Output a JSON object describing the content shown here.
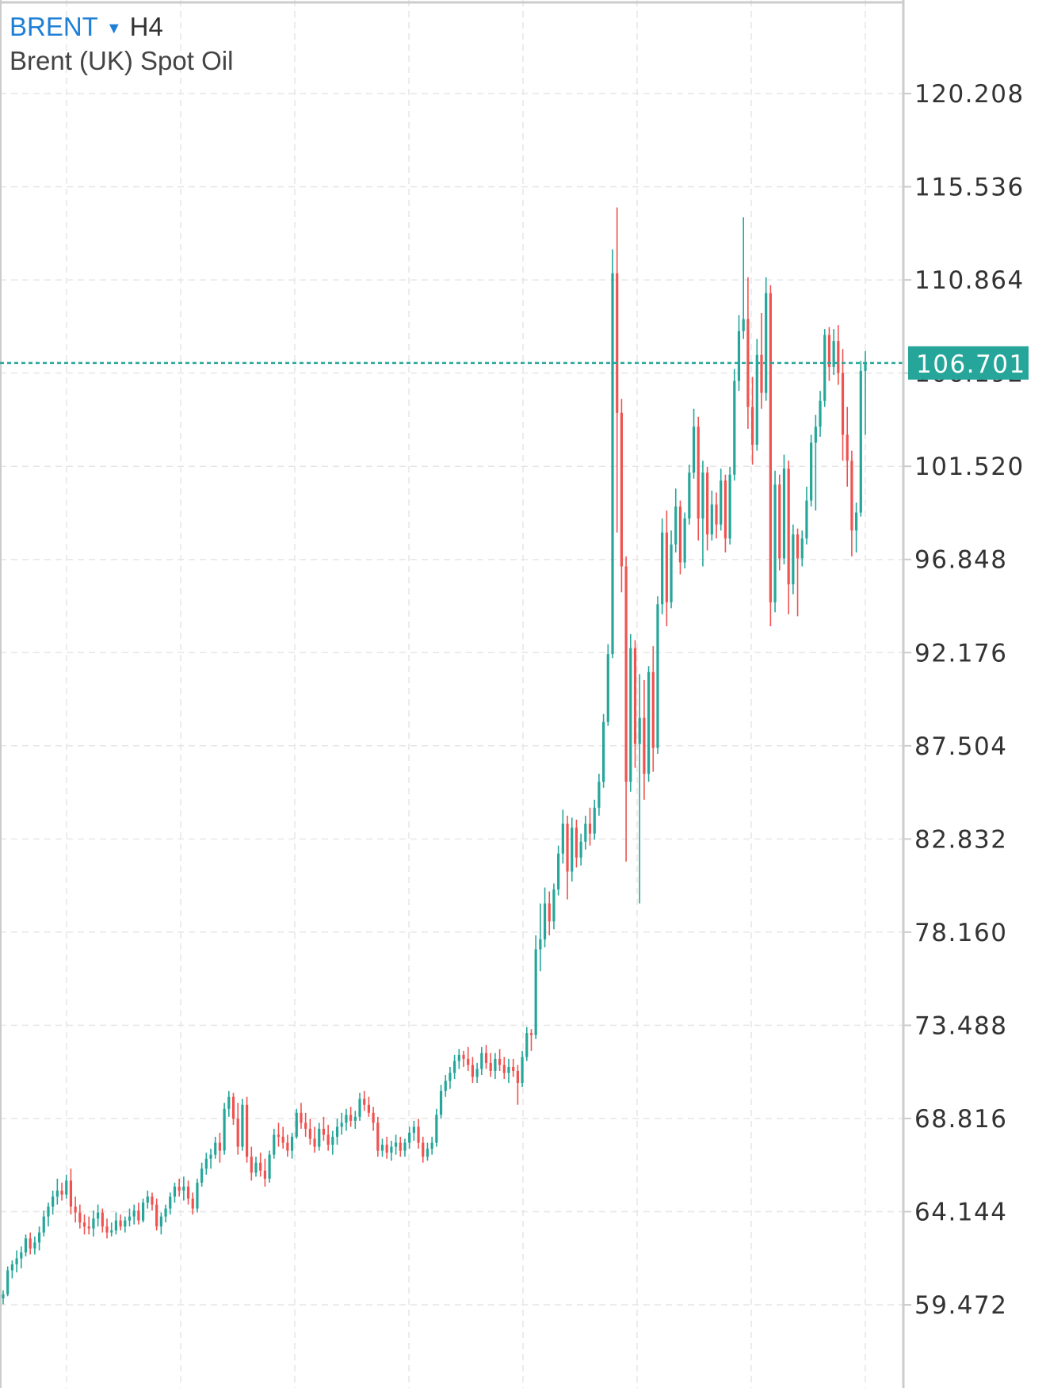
{
  "header": {
    "symbol": "BRENT",
    "dropdown_icon": "triangle-down",
    "timeframe": "H4",
    "instrument_name": "Brent (UK) Spot Oil"
  },
  "colors": {
    "up": "#26a69a",
    "down": "#ef5350",
    "grid": "#e6e6e6",
    "axis_line": "#cccccc",
    "tick_text": "#333333",
    "price_line": "#26a69a",
    "price_label_bg": "#26a69a",
    "symbol": "#1e7fd6"
  },
  "chart_data": {
    "type": "candlestick",
    "title": "",
    "xlabel": "",
    "ylabel": "",
    "ylim": [
      55.3,
      124.9
    ],
    "y_ticks": [
      "120.208",
      "115.536",
      "110.864",
      "106.192",
      "101.520",
      "96.848",
      "92.176",
      "87.504",
      "82.832",
      "78.160",
      "73.488",
      "68.816",
      "64.144",
      "59.472"
    ],
    "current_price": "106.701",
    "current_price_value": 106.701,
    "grid": true,
    "ohlc": [
      [
        59.8,
        60.2,
        59.5,
        60.0
      ],
      [
        60.0,
        61.4,
        59.9,
        61.2
      ],
      [
        61.2,
        61.7,
        60.8,
        61.5
      ],
      [
        61.5,
        62.2,
        61.1,
        61.8
      ],
      [
        61.8,
        62.4,
        61.3,
        62.1
      ],
      [
        62.1,
        63.0,
        61.9,
        62.8
      ],
      [
        62.8,
        63.1,
        62.0,
        62.3
      ],
      [
        62.3,
        62.9,
        62.0,
        62.6
      ],
      [
        62.6,
        63.4,
        62.2,
        63.1
      ],
      [
        63.1,
        64.2,
        62.9,
        63.9
      ],
      [
        63.9,
        64.6,
        63.4,
        64.4
      ],
      [
        64.4,
        65.2,
        64.0,
        64.9
      ],
      [
        64.9,
        65.8,
        64.5,
        65.2
      ],
      [
        65.2,
        65.6,
        64.7,
        65.0
      ],
      [
        65.0,
        66.0,
        64.8,
        65.7
      ],
      [
        65.7,
        66.3,
        64.0,
        64.4
      ],
      [
        64.4,
        64.9,
        63.6,
        64.1
      ],
      [
        64.1,
        64.5,
        63.3,
        63.6
      ],
      [
        63.6,
        64.0,
        63.0,
        63.4
      ],
      [
        63.4,
        63.9,
        63.0,
        63.3
      ],
      [
        63.3,
        64.2,
        62.9,
        63.8
      ],
      [
        63.8,
        64.5,
        63.4,
        64.1
      ],
      [
        64.1,
        64.3,
        63.1,
        63.4
      ],
      [
        63.4,
        63.8,
        62.8,
        63.1
      ],
      [
        63.1,
        63.6,
        62.9,
        63.2
      ],
      [
        63.2,
        64.1,
        63.0,
        63.7
      ],
      [
        63.7,
        64.0,
        63.2,
        63.4
      ],
      [
        63.4,
        63.9,
        63.1,
        63.7
      ],
      [
        63.7,
        64.3,
        63.4,
        63.9
      ],
      [
        63.9,
        64.5,
        63.5,
        64.2
      ],
      [
        64.2,
        64.6,
        63.5,
        63.7
      ],
      [
        63.7,
        64.8,
        63.6,
        64.6
      ],
      [
        64.6,
        65.2,
        64.3,
        64.9
      ],
      [
        64.9,
        65.1,
        64.2,
        64.5
      ],
      [
        64.5,
        64.8,
        63.2,
        63.4
      ],
      [
        63.4,
        64.1,
        63.0,
        63.9
      ],
      [
        63.9,
        64.5,
        63.6,
        64.3
      ],
      [
        64.3,
        65.1,
        64.0,
        64.9
      ],
      [
        64.9,
        65.6,
        64.6,
        65.4
      ],
      [
        65.4,
        65.8,
        64.9,
        65.2
      ],
      [
        65.2,
        65.9,
        64.7,
        65.4
      ],
      [
        65.4,
        65.7,
        64.5,
        64.8
      ],
      [
        64.8,
        65.1,
        64.0,
        64.3
      ],
      [
        64.3,
        65.8,
        64.1,
        65.6
      ],
      [
        65.6,
        66.6,
        65.4,
        66.3
      ],
      [
        66.3,
        67.1,
        66.0,
        66.8
      ],
      [
        66.8,
        67.3,
        66.3,
        67.0
      ],
      [
        67.0,
        67.9,
        66.8,
        67.6
      ],
      [
        67.6,
        68.1,
        66.6,
        67.2
      ],
      [
        67.2,
        69.6,
        67.0,
        69.3
      ],
      [
        69.3,
        70.2,
        68.9,
        69.9
      ],
      [
        69.9,
        70.1,
        68.5,
        68.8
      ],
      [
        68.8,
        69.6,
        67.0,
        67.4
      ],
      [
        67.4,
        69.8,
        67.2,
        69.5
      ],
      [
        69.5,
        69.9,
        66.6,
        66.9
      ],
      [
        66.9,
        67.4,
        65.7,
        66.1
      ],
      [
        66.1,
        66.9,
        65.9,
        66.6
      ],
      [
        66.6,
        67.1,
        65.9,
        66.2
      ],
      [
        66.2,
        66.8,
        65.4,
        65.8
      ],
      [
        65.8,
        67.2,
        65.6,
        67.0
      ],
      [
        67.0,
        68.3,
        66.8,
        68.0
      ],
      [
        68.0,
        68.6,
        67.4,
        67.9
      ],
      [
        67.9,
        68.4,
        67.3,
        67.6
      ],
      [
        67.6,
        68.0,
        66.9,
        67.2
      ],
      [
        67.2,
        68.1,
        66.8,
        67.9
      ],
      [
        67.9,
        69.3,
        67.8,
        69.1
      ],
      [
        69.1,
        69.6,
        68.3,
        68.6
      ],
      [
        68.6,
        69.1,
        67.9,
        68.3
      ],
      [
        68.3,
        68.8,
        67.5,
        67.8
      ],
      [
        67.8,
        68.4,
        67.1,
        67.4
      ],
      [
        67.4,
        68.6,
        67.2,
        68.3
      ],
      [
        68.3,
        68.9,
        67.7,
        68.0
      ],
      [
        68.0,
        68.5,
        67.2,
        67.5
      ],
      [
        67.5,
        68.2,
        67.0,
        67.9
      ],
      [
        67.9,
        68.8,
        67.5,
        68.4
      ],
      [
        68.4,
        69.1,
        68.0,
        68.6
      ],
      [
        68.6,
        69.3,
        68.2,
        69.0
      ],
      [
        69.0,
        69.4,
        68.4,
        68.7
      ],
      [
        68.7,
        69.2,
        68.3,
        68.9
      ],
      [
        68.9,
        70.1,
        68.7,
        69.8
      ],
      [
        69.8,
        70.2,
        69.2,
        69.5
      ],
      [
        69.5,
        69.9,
        68.9,
        69.1
      ],
      [
        69.1,
        69.4,
        68.2,
        68.6
      ],
      [
        68.6,
        68.9,
        66.9,
        67.2
      ],
      [
        67.2,
        67.8,
        66.9,
        67.5
      ],
      [
        67.5,
        67.9,
        66.8,
        67.1
      ],
      [
        67.1,
        67.7,
        66.7,
        67.4
      ],
      [
        67.4,
        68.0,
        67.0,
        67.6
      ],
      [
        67.6,
        67.9,
        66.9,
        67.2
      ],
      [
        67.2,
        67.8,
        66.9,
        67.6
      ],
      [
        67.6,
        68.4,
        67.3,
        68.1
      ],
      [
        68.1,
        68.7,
        67.7,
        68.4
      ],
      [
        68.4,
        68.8,
        67.3,
        67.6
      ],
      [
        67.6,
        67.9,
        66.6,
        66.9
      ],
      [
        66.9,
        67.6,
        66.7,
        67.3
      ],
      [
        67.3,
        67.9,
        67.0,
        67.6
      ],
      [
        67.6,
        69.3,
        67.4,
        69.0
      ],
      [
        69.0,
        70.5,
        68.8,
        70.2
      ],
      [
        70.2,
        71.0,
        69.9,
        70.7
      ],
      [
        70.7,
        71.4,
        70.3,
        71.1
      ],
      [
        71.1,
        72.0,
        70.8,
        71.7
      ],
      [
        71.7,
        72.3,
        71.3,
        72.0
      ],
      [
        72.0,
        72.2,
        71.4,
        71.8
      ],
      [
        71.8,
        72.4,
        71.2,
        71.5
      ],
      [
        71.5,
        71.9,
        70.6,
        70.9
      ],
      [
        70.9,
        71.6,
        70.6,
        71.3
      ],
      [
        71.3,
        72.4,
        71.0,
        72.1
      ],
      [
        72.1,
        72.5,
        71.3,
        71.6
      ],
      [
        71.6,
        72.1,
        70.9,
        71.2
      ],
      [
        71.2,
        72.1,
        70.8,
        71.8
      ],
      [
        71.8,
        72.3,
        71.2,
        71.5
      ],
      [
        71.5,
        71.9,
        70.8,
        71.1
      ],
      [
        71.1,
        71.8,
        70.6,
        71.4
      ],
      [
        71.4,
        71.8,
        70.9,
        71.2
      ],
      [
        71.2,
        71.5,
        69.5,
        70.6
      ],
      [
        70.6,
        72.2,
        70.4,
        71.9
      ],
      [
        71.9,
        73.4,
        71.7,
        73.1
      ],
      [
        73.1,
        73.3,
        72.2,
        73.0
      ],
      [
        73.0,
        78.0,
        72.8,
        77.3
      ],
      [
        77.3,
        79.6,
        76.2,
        77.8
      ],
      [
        77.8,
        80.4,
        77.4,
        79.6
      ],
      [
        79.6,
        80.2,
        78.0,
        78.7
      ],
      [
        78.7,
        80.6,
        78.3,
        80.3
      ],
      [
        80.3,
        82.5,
        80.0,
        82.1
      ],
      [
        82.1,
        84.3,
        81.6,
        83.6
      ],
      [
        83.6,
        84.0,
        79.8,
        81.2
      ],
      [
        81.2,
        83.9,
        80.7,
        83.4
      ],
      [
        83.4,
        83.8,
        81.4,
        81.9
      ],
      [
        81.9,
        83.1,
        81.5,
        82.7
      ],
      [
        82.7,
        84.0,
        82.3,
        83.6
      ],
      [
        83.6,
        84.4,
        82.5,
        83.1
      ],
      [
        83.1,
        84.8,
        82.8,
        84.4
      ],
      [
        84.4,
        86.1,
        84.0,
        85.7
      ],
      [
        85.7,
        89.1,
        85.4,
        88.7
      ],
      [
        88.7,
        92.6,
        88.5,
        92.1
      ],
      [
        92.1,
        112.4,
        91.9,
        111.2
      ],
      [
        111.2,
        114.5,
        98.2,
        104.2
      ],
      [
        104.2,
        104.9,
        95.2,
        96.5
      ],
      [
        96.5,
        97.0,
        81.7,
        85.7
      ],
      [
        85.7,
        93.1,
        85.2,
        92.4
      ],
      [
        92.4,
        92.8,
        86.4,
        87.6
      ],
      [
        87.6,
        91.1,
        79.6,
        88.9
      ],
      [
        88.9,
        90.8,
        84.8,
        86.1
      ],
      [
        86.1,
        91.5,
        85.7,
        91.2
      ],
      [
        91.2,
        92.5,
        86.2,
        87.4
      ],
      [
        87.4,
        95.0,
        87.1,
        94.6
      ],
      [
        94.6,
        98.9,
        94.1,
        98.2
      ],
      [
        98.2,
        99.3,
        93.5,
        94.7
      ],
      [
        94.7,
        98.3,
        94.4,
        97.6
      ],
      [
        97.6,
        100.4,
        97.2,
        99.5
      ],
      [
        99.5,
        99.8,
        96.1,
        96.7
      ],
      [
        96.7,
        99.2,
        96.4,
        98.9
      ],
      [
        98.9,
        101.6,
        98.6,
        101.2
      ],
      [
        101.2,
        104.4,
        100.9,
        103.5
      ],
      [
        103.5,
        104.0,
        97.8,
        98.9
      ],
      [
        98.9,
        101.8,
        96.5,
        101.2
      ],
      [
        101.2,
        101.5,
        97.3,
        98.1
      ],
      [
        98.1,
        100.3,
        97.8,
        99.6
      ],
      [
        99.6,
        100.2,
        97.9,
        98.6
      ],
      [
        98.6,
        101.4,
        98.3,
        100.8
      ],
      [
        100.8,
        101.1,
        97.2,
        97.9
      ],
      [
        97.9,
        101.5,
        97.6,
        101.1
      ],
      [
        101.1,
        106.4,
        100.8,
        105.8
      ],
      [
        105.8,
        109.1,
        105.3,
        108.3
      ],
      [
        108.3,
        114.0,
        107.9,
        108.9
      ],
      [
        108.9,
        111.0,
        103.4,
        104.5
      ],
      [
        104.5,
        106.0,
        101.6,
        102.6
      ],
      [
        102.6,
        107.9,
        102.3,
        107.1
      ],
      [
        107.1,
        109.2,
        104.4,
        105.2
      ],
      [
        105.2,
        111.0,
        104.8,
        110.2
      ],
      [
        110.2,
        110.6,
        93.5,
        94.7
      ],
      [
        94.7,
        101.3,
        94.2,
        100.6
      ],
      [
        100.6,
        101.1,
        96.3,
        96.9
      ],
      [
        96.9,
        102.1,
        96.6,
        101.4
      ],
      [
        101.4,
        101.8,
        94.1,
        95.6
      ],
      [
        95.6,
        98.6,
        95.1,
        98.1
      ],
      [
        98.1,
        98.4,
        94.0,
        96.9
      ],
      [
        96.9,
        98.3,
        96.5,
        97.9
      ],
      [
        97.9,
        100.5,
        97.6,
        99.8
      ],
      [
        99.8,
        103.1,
        99.5,
        102.7
      ],
      [
        102.7,
        104.1,
        99.3,
        103.5
      ],
      [
        103.5,
        105.3,
        103.0,
        104.8
      ],
      [
        104.8,
        108.4,
        104.5,
        108.1
      ],
      [
        108.1,
        108.5,
        105.8,
        106.5
      ],
      [
        106.5,
        108.4,
        106.1,
        107.8
      ],
      [
        107.8,
        108.6,
        105.6,
        106.2
      ],
      [
        106.2,
        107.4,
        101.8,
        103.1
      ],
      [
        103.1,
        104.5,
        100.5,
        101.8
      ],
      [
        101.8,
        102.3,
        97.0,
        98.3
      ],
      [
        98.3,
        99.7,
        97.2,
        99.2
      ],
      [
        99.2,
        106.8,
        99.0,
        106.3
      ],
      [
        106.3,
        107.3,
        103.1,
        106.7
      ]
    ]
  }
}
